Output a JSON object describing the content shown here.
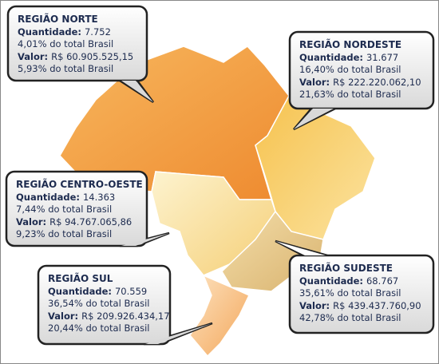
{
  "regions": [
    {
      "title": "REGIÃO NORTE",
      "quantity_label": "Quantidade:",
      "quantity": "7.752",
      "quantity_share": "4,01% do total Brasil",
      "value_label": "Valor:",
      "value": "R$ 60.905.525,15",
      "value_share": "5,93% do total Brasil"
    },
    {
      "title": "REGIÃO NORDESTE",
      "quantity_label": "Quantidade:",
      "quantity": "31.677",
      "quantity_share": "16,40% do total Brasil",
      "value_label": "Valor:",
      "value": "R$ 222.220.062,10",
      "value_share": "21,63% do total Brasil"
    },
    {
      "title": "REGIÃO CENTRO-OESTE",
      "quantity_label": "Quantidade:",
      "quantity": "14.363",
      "quantity_share": "7,44% do total Brasil",
      "value_label": "Valor:",
      "value": "R$ 94.767.065,86",
      "value_share": "9,23% do total Brasil"
    },
    {
      "title": "REGIÃO SUL",
      "quantity_label": "Quantidade:",
      "quantity": "70.559",
      "quantity_share": "36,54% do total Brasil",
      "value_label": "Valor:",
      "value": "R$ 209.926.434,17",
      "value_share": "20,44% do total Brasil"
    },
    {
      "title": "REGIÃO SUDESTE",
      "quantity_label": "Quantidade:",
      "quantity": "68.767",
      "quantity_share": "35,61% do total Brasil",
      "value_label": "Valor:",
      "value": "R$ 439.437.760,90",
      "value_share": "42,78% do total Brasil"
    }
  ]
}
